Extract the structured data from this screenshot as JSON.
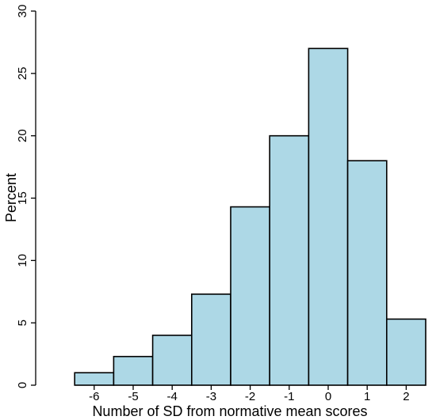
{
  "chart_data": {
    "type": "bar",
    "title": "",
    "xlabel": "Number of SD from normative mean scores",
    "ylabel": "Percent",
    "bins": [
      {
        "x0": -6.5,
        "x1": -5.5,
        "value": 1.0
      },
      {
        "x0": -5.5,
        "x1": -4.5,
        "value": 2.3
      },
      {
        "x0": -4.5,
        "x1": -3.5,
        "value": 4.0
      },
      {
        "x0": -3.5,
        "x1": -2.5,
        "value": 7.3
      },
      {
        "x0": -2.5,
        "x1": -1.5,
        "value": 14.3
      },
      {
        "x0": -1.5,
        "x1": -0.5,
        "value": 20.0
      },
      {
        "x0": -0.5,
        "x1": 0.5,
        "value": 27.0
      },
      {
        "x0": 0.5,
        "x1": 1.5,
        "value": 18.0
      },
      {
        "x0": 1.5,
        "x1": 2.5,
        "value": 5.3
      }
    ],
    "xticks": [
      -6,
      -5,
      -4,
      -3,
      -2,
      -1,
      0,
      1,
      2
    ],
    "yticks": [
      0,
      5,
      10,
      15,
      20,
      25,
      30
    ],
    "xlim": [
      -7.5,
      2.5
    ],
    "ylim": [
      0,
      30
    ],
    "grid": false,
    "bar_color": "#add8e6",
    "edge_color": "#000000"
  }
}
